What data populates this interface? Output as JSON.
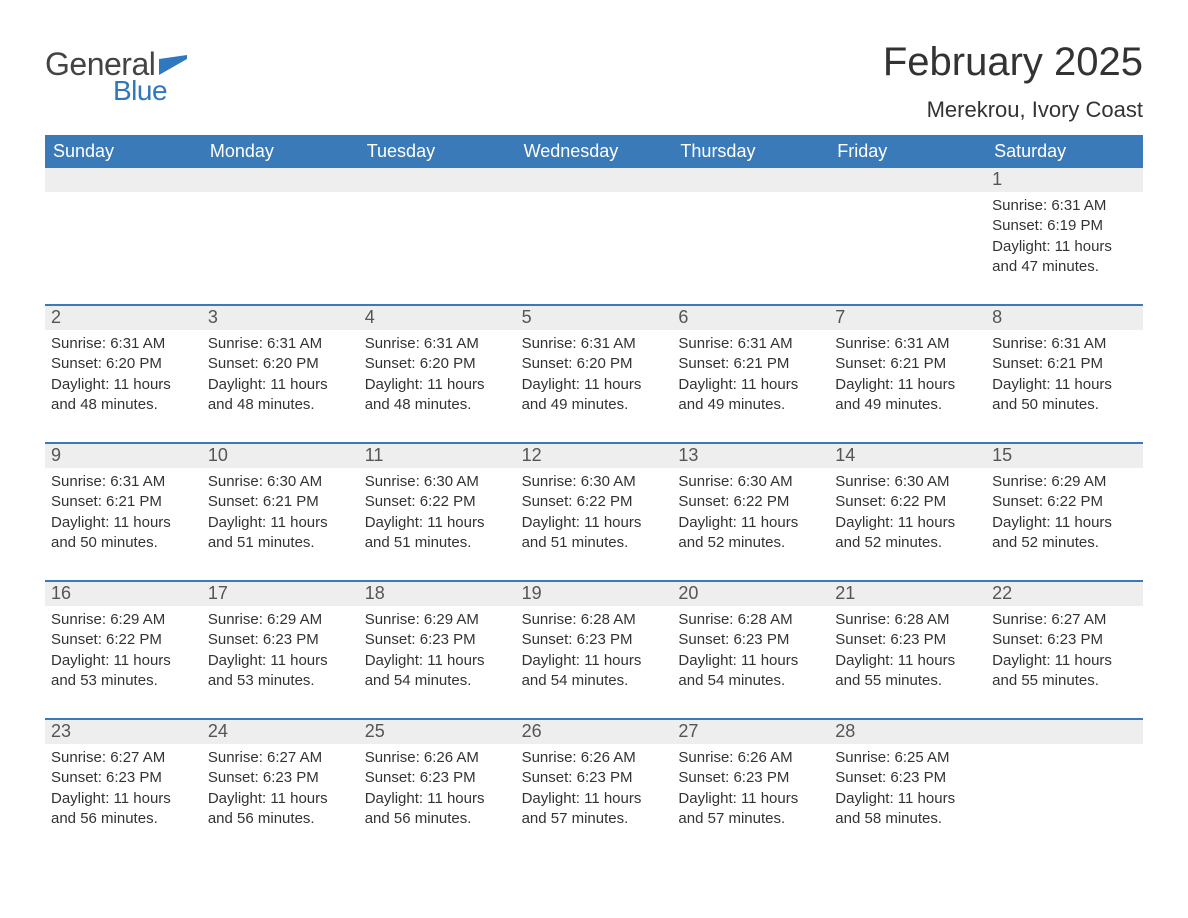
{
  "logo": {
    "text_general": "General",
    "text_blue": "Blue",
    "flag_color": "#2f78bf"
  },
  "title": "February 2025",
  "location": "Merekrou, Ivory Coast",
  "colors": {
    "header_bg": "#3a7ab8",
    "header_text": "#ffffff",
    "daynum_bg": "#eeeeee",
    "daynum_text": "#555555",
    "body_text": "#333333",
    "week_border": "#3a7ab8",
    "page_bg": "#ffffff"
  },
  "fonts": {
    "title_size": 40,
    "location_size": 22,
    "dow_size": 18,
    "daynum_size": 18,
    "body_size": 15
  },
  "days_of_week": [
    "Sunday",
    "Monday",
    "Tuesday",
    "Wednesday",
    "Thursday",
    "Friday",
    "Saturday"
  ],
  "weeks": [
    [
      {
        "num": "",
        "sunrise": "",
        "sunset": "",
        "daylight1": "",
        "daylight2": ""
      },
      {
        "num": "",
        "sunrise": "",
        "sunset": "",
        "daylight1": "",
        "daylight2": ""
      },
      {
        "num": "",
        "sunrise": "",
        "sunset": "",
        "daylight1": "",
        "daylight2": ""
      },
      {
        "num": "",
        "sunrise": "",
        "sunset": "",
        "daylight1": "",
        "daylight2": ""
      },
      {
        "num": "",
        "sunrise": "",
        "sunset": "",
        "daylight1": "",
        "daylight2": ""
      },
      {
        "num": "",
        "sunrise": "",
        "sunset": "",
        "daylight1": "",
        "daylight2": ""
      },
      {
        "num": "1",
        "sunrise": "Sunrise: 6:31 AM",
        "sunset": "Sunset: 6:19 PM",
        "daylight1": "Daylight: 11 hours",
        "daylight2": "and 47 minutes."
      }
    ],
    [
      {
        "num": "2",
        "sunrise": "Sunrise: 6:31 AM",
        "sunset": "Sunset: 6:20 PM",
        "daylight1": "Daylight: 11 hours",
        "daylight2": "and 48 minutes."
      },
      {
        "num": "3",
        "sunrise": "Sunrise: 6:31 AM",
        "sunset": "Sunset: 6:20 PM",
        "daylight1": "Daylight: 11 hours",
        "daylight2": "and 48 minutes."
      },
      {
        "num": "4",
        "sunrise": "Sunrise: 6:31 AM",
        "sunset": "Sunset: 6:20 PM",
        "daylight1": "Daylight: 11 hours",
        "daylight2": "and 48 minutes."
      },
      {
        "num": "5",
        "sunrise": "Sunrise: 6:31 AM",
        "sunset": "Sunset: 6:20 PM",
        "daylight1": "Daylight: 11 hours",
        "daylight2": "and 49 minutes."
      },
      {
        "num": "6",
        "sunrise": "Sunrise: 6:31 AM",
        "sunset": "Sunset: 6:21 PM",
        "daylight1": "Daylight: 11 hours",
        "daylight2": "and 49 minutes."
      },
      {
        "num": "7",
        "sunrise": "Sunrise: 6:31 AM",
        "sunset": "Sunset: 6:21 PM",
        "daylight1": "Daylight: 11 hours",
        "daylight2": "and 49 minutes."
      },
      {
        "num": "8",
        "sunrise": "Sunrise: 6:31 AM",
        "sunset": "Sunset: 6:21 PM",
        "daylight1": "Daylight: 11 hours",
        "daylight2": "and 50 minutes."
      }
    ],
    [
      {
        "num": "9",
        "sunrise": "Sunrise: 6:31 AM",
        "sunset": "Sunset: 6:21 PM",
        "daylight1": "Daylight: 11 hours",
        "daylight2": "and 50 minutes."
      },
      {
        "num": "10",
        "sunrise": "Sunrise: 6:30 AM",
        "sunset": "Sunset: 6:21 PM",
        "daylight1": "Daylight: 11 hours",
        "daylight2": "and 51 minutes."
      },
      {
        "num": "11",
        "sunrise": "Sunrise: 6:30 AM",
        "sunset": "Sunset: 6:22 PM",
        "daylight1": "Daylight: 11 hours",
        "daylight2": "and 51 minutes."
      },
      {
        "num": "12",
        "sunrise": "Sunrise: 6:30 AM",
        "sunset": "Sunset: 6:22 PM",
        "daylight1": "Daylight: 11 hours",
        "daylight2": "and 51 minutes."
      },
      {
        "num": "13",
        "sunrise": "Sunrise: 6:30 AM",
        "sunset": "Sunset: 6:22 PM",
        "daylight1": "Daylight: 11 hours",
        "daylight2": "and 52 minutes."
      },
      {
        "num": "14",
        "sunrise": "Sunrise: 6:30 AM",
        "sunset": "Sunset: 6:22 PM",
        "daylight1": "Daylight: 11 hours",
        "daylight2": "and 52 minutes."
      },
      {
        "num": "15",
        "sunrise": "Sunrise: 6:29 AM",
        "sunset": "Sunset: 6:22 PM",
        "daylight1": "Daylight: 11 hours",
        "daylight2": "and 52 minutes."
      }
    ],
    [
      {
        "num": "16",
        "sunrise": "Sunrise: 6:29 AM",
        "sunset": "Sunset: 6:22 PM",
        "daylight1": "Daylight: 11 hours",
        "daylight2": "and 53 minutes."
      },
      {
        "num": "17",
        "sunrise": "Sunrise: 6:29 AM",
        "sunset": "Sunset: 6:23 PM",
        "daylight1": "Daylight: 11 hours",
        "daylight2": "and 53 minutes."
      },
      {
        "num": "18",
        "sunrise": "Sunrise: 6:29 AM",
        "sunset": "Sunset: 6:23 PM",
        "daylight1": "Daylight: 11 hours",
        "daylight2": "and 54 minutes."
      },
      {
        "num": "19",
        "sunrise": "Sunrise: 6:28 AM",
        "sunset": "Sunset: 6:23 PM",
        "daylight1": "Daylight: 11 hours",
        "daylight2": "and 54 minutes."
      },
      {
        "num": "20",
        "sunrise": "Sunrise: 6:28 AM",
        "sunset": "Sunset: 6:23 PM",
        "daylight1": "Daylight: 11 hours",
        "daylight2": "and 54 minutes."
      },
      {
        "num": "21",
        "sunrise": "Sunrise: 6:28 AM",
        "sunset": "Sunset: 6:23 PM",
        "daylight1": "Daylight: 11 hours",
        "daylight2": "and 55 minutes."
      },
      {
        "num": "22",
        "sunrise": "Sunrise: 6:27 AM",
        "sunset": "Sunset: 6:23 PM",
        "daylight1": "Daylight: 11 hours",
        "daylight2": "and 55 minutes."
      }
    ],
    [
      {
        "num": "23",
        "sunrise": "Sunrise: 6:27 AM",
        "sunset": "Sunset: 6:23 PM",
        "daylight1": "Daylight: 11 hours",
        "daylight2": "and 56 minutes."
      },
      {
        "num": "24",
        "sunrise": "Sunrise: 6:27 AM",
        "sunset": "Sunset: 6:23 PM",
        "daylight1": "Daylight: 11 hours",
        "daylight2": "and 56 minutes."
      },
      {
        "num": "25",
        "sunrise": "Sunrise: 6:26 AM",
        "sunset": "Sunset: 6:23 PM",
        "daylight1": "Daylight: 11 hours",
        "daylight2": "and 56 minutes."
      },
      {
        "num": "26",
        "sunrise": "Sunrise: 6:26 AM",
        "sunset": "Sunset: 6:23 PM",
        "daylight1": "Daylight: 11 hours",
        "daylight2": "and 57 minutes."
      },
      {
        "num": "27",
        "sunrise": "Sunrise: 6:26 AM",
        "sunset": "Sunset: 6:23 PM",
        "daylight1": "Daylight: 11 hours",
        "daylight2": "and 57 minutes."
      },
      {
        "num": "28",
        "sunrise": "Sunrise: 6:25 AM",
        "sunset": "Sunset: 6:23 PM",
        "daylight1": "Daylight: 11 hours",
        "daylight2": "and 58 minutes."
      },
      {
        "num": "",
        "sunrise": "",
        "sunset": "",
        "daylight1": "",
        "daylight2": ""
      }
    ]
  ]
}
